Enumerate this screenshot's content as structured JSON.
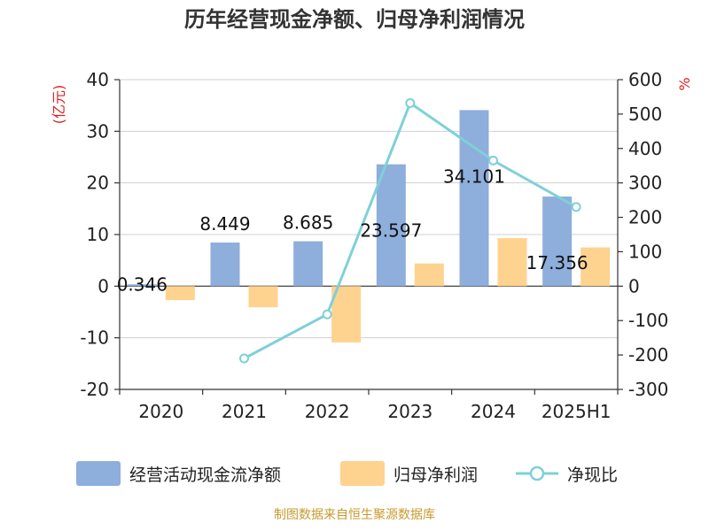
{
  "chart_data": {
    "type": "bar",
    "title": "历年经营现金净额、归母净利润情况",
    "categories": [
      "2020",
      "2021",
      "2022",
      "2023",
      "2024",
      "2025H1"
    ],
    "left_axis": {
      "label": "(亿元)",
      "ylim": [
        -20,
        40
      ],
      "ticks": [
        "40",
        "30",
        "20",
        "10",
        "0",
        "-10",
        "-20"
      ],
      "tick_values": [
        40,
        30,
        20,
        10,
        0,
        -10,
        -20
      ]
    },
    "right_axis": {
      "label": "%",
      "ylim": [
        -300,
        600
      ],
      "ticks": [
        "600",
        "500",
        "400",
        "300",
        "200",
        "100",
        "0",
        "-100",
        "-200",
        "-300"
      ],
      "tick_values": [
        600,
        500,
        400,
        300,
        200,
        100,
        0,
        -100,
        -200,
        -300
      ]
    },
    "series": [
      {
        "name": "经营活动现金流净额",
        "kind": "bar",
        "axis": "left",
        "color": "#8eaedb",
        "values": [
          0.346,
          8.449,
          8.685,
          23.597,
          34.101,
          17.356
        ],
        "labels": [
          "0.346",
          "8.449",
          "8.685",
          "23.597",
          "34.101",
          "17.356"
        ]
      },
      {
        "name": "归母净利润",
        "kind": "bar",
        "axis": "left",
        "color": "#fdd38f",
        "values": [
          -2.7,
          -4.1,
          -10.9,
          4.4,
          9.3,
          7.5
        ]
      },
      {
        "name": "净现比",
        "kind": "line",
        "axis": "right",
        "color": "#7fd0d8",
        "values": [
          null,
          -210,
          -82,
          532,
          365,
          230
        ]
      }
    ],
    "legend_position": "bottom",
    "grid": true
  },
  "source": "制图数据来自恒生聚源数据库",
  "colors": {
    "title": "#333333",
    "axis_label": "#e02020",
    "source": "#c89a2e",
    "text": "#222222"
  }
}
